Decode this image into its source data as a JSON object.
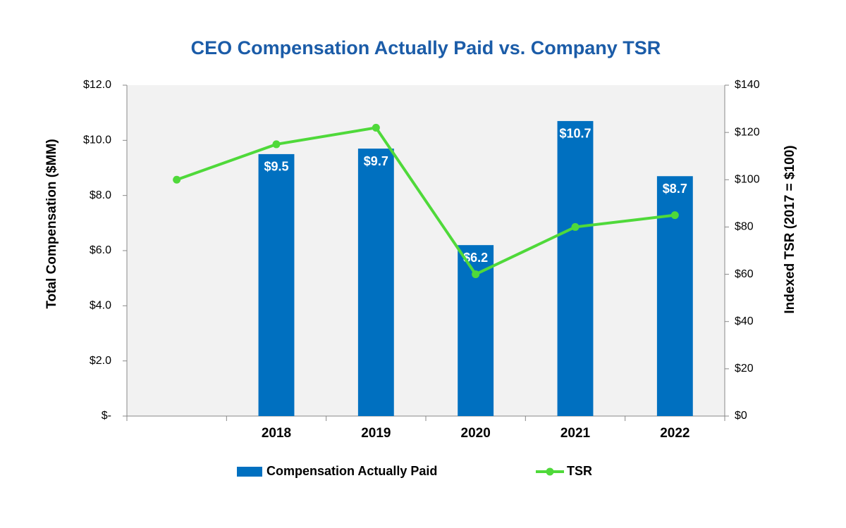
{
  "chart_data": {
    "type": "bar",
    "title": "CEO Compensation Actually Paid vs. Company TSR",
    "categories": [
      null,
      "2018",
      "2019",
      "2020",
      "2021",
      "2022"
    ],
    "series": [
      {
        "name": "Compensation Actually Paid",
        "type": "bar",
        "color": "#0070c0",
        "values": [
          null,
          9.5,
          9.7,
          6.2,
          10.7,
          8.7
        ],
        "value_labels": [
          null,
          "$9.5",
          "$9.7",
          "$6.2",
          "$10.7",
          "$8.7"
        ]
      },
      {
        "name": "TSR",
        "type": "line",
        "axis": "y2",
        "color": "#4fd93a",
        "values": [
          100,
          115,
          122,
          60,
          80,
          85
        ]
      }
    ],
    "ylabel": "Total Compensation ($MM)",
    "y2label": "Indexed TSR (2017 = $100)",
    "ylim": [
      0,
      12
    ],
    "yticks": [
      {
        "value": 0,
        "label": "$-"
      },
      {
        "value": 2,
        "label": "$2.0"
      },
      {
        "value": 4,
        "label": "$4.0"
      },
      {
        "value": 6,
        "label": "$6.0"
      },
      {
        "value": 8,
        "label": "$8.0"
      },
      {
        "value": 10,
        "label": "$10.0"
      },
      {
        "value": 12,
        "label": "$12.0"
      }
    ],
    "y2lim": [
      0,
      140
    ],
    "y2ticks": [
      {
        "value": 0,
        "label": "$0"
      },
      {
        "value": 20,
        "label": "$20"
      },
      {
        "value": 40,
        "label": "$40"
      },
      {
        "value": 60,
        "label": "$60"
      },
      {
        "value": 80,
        "label": "$80"
      },
      {
        "value": 100,
        "label": "$100"
      },
      {
        "value": 120,
        "label": "$120"
      },
      {
        "value": 140,
        "label": "$140"
      }
    ]
  }
}
